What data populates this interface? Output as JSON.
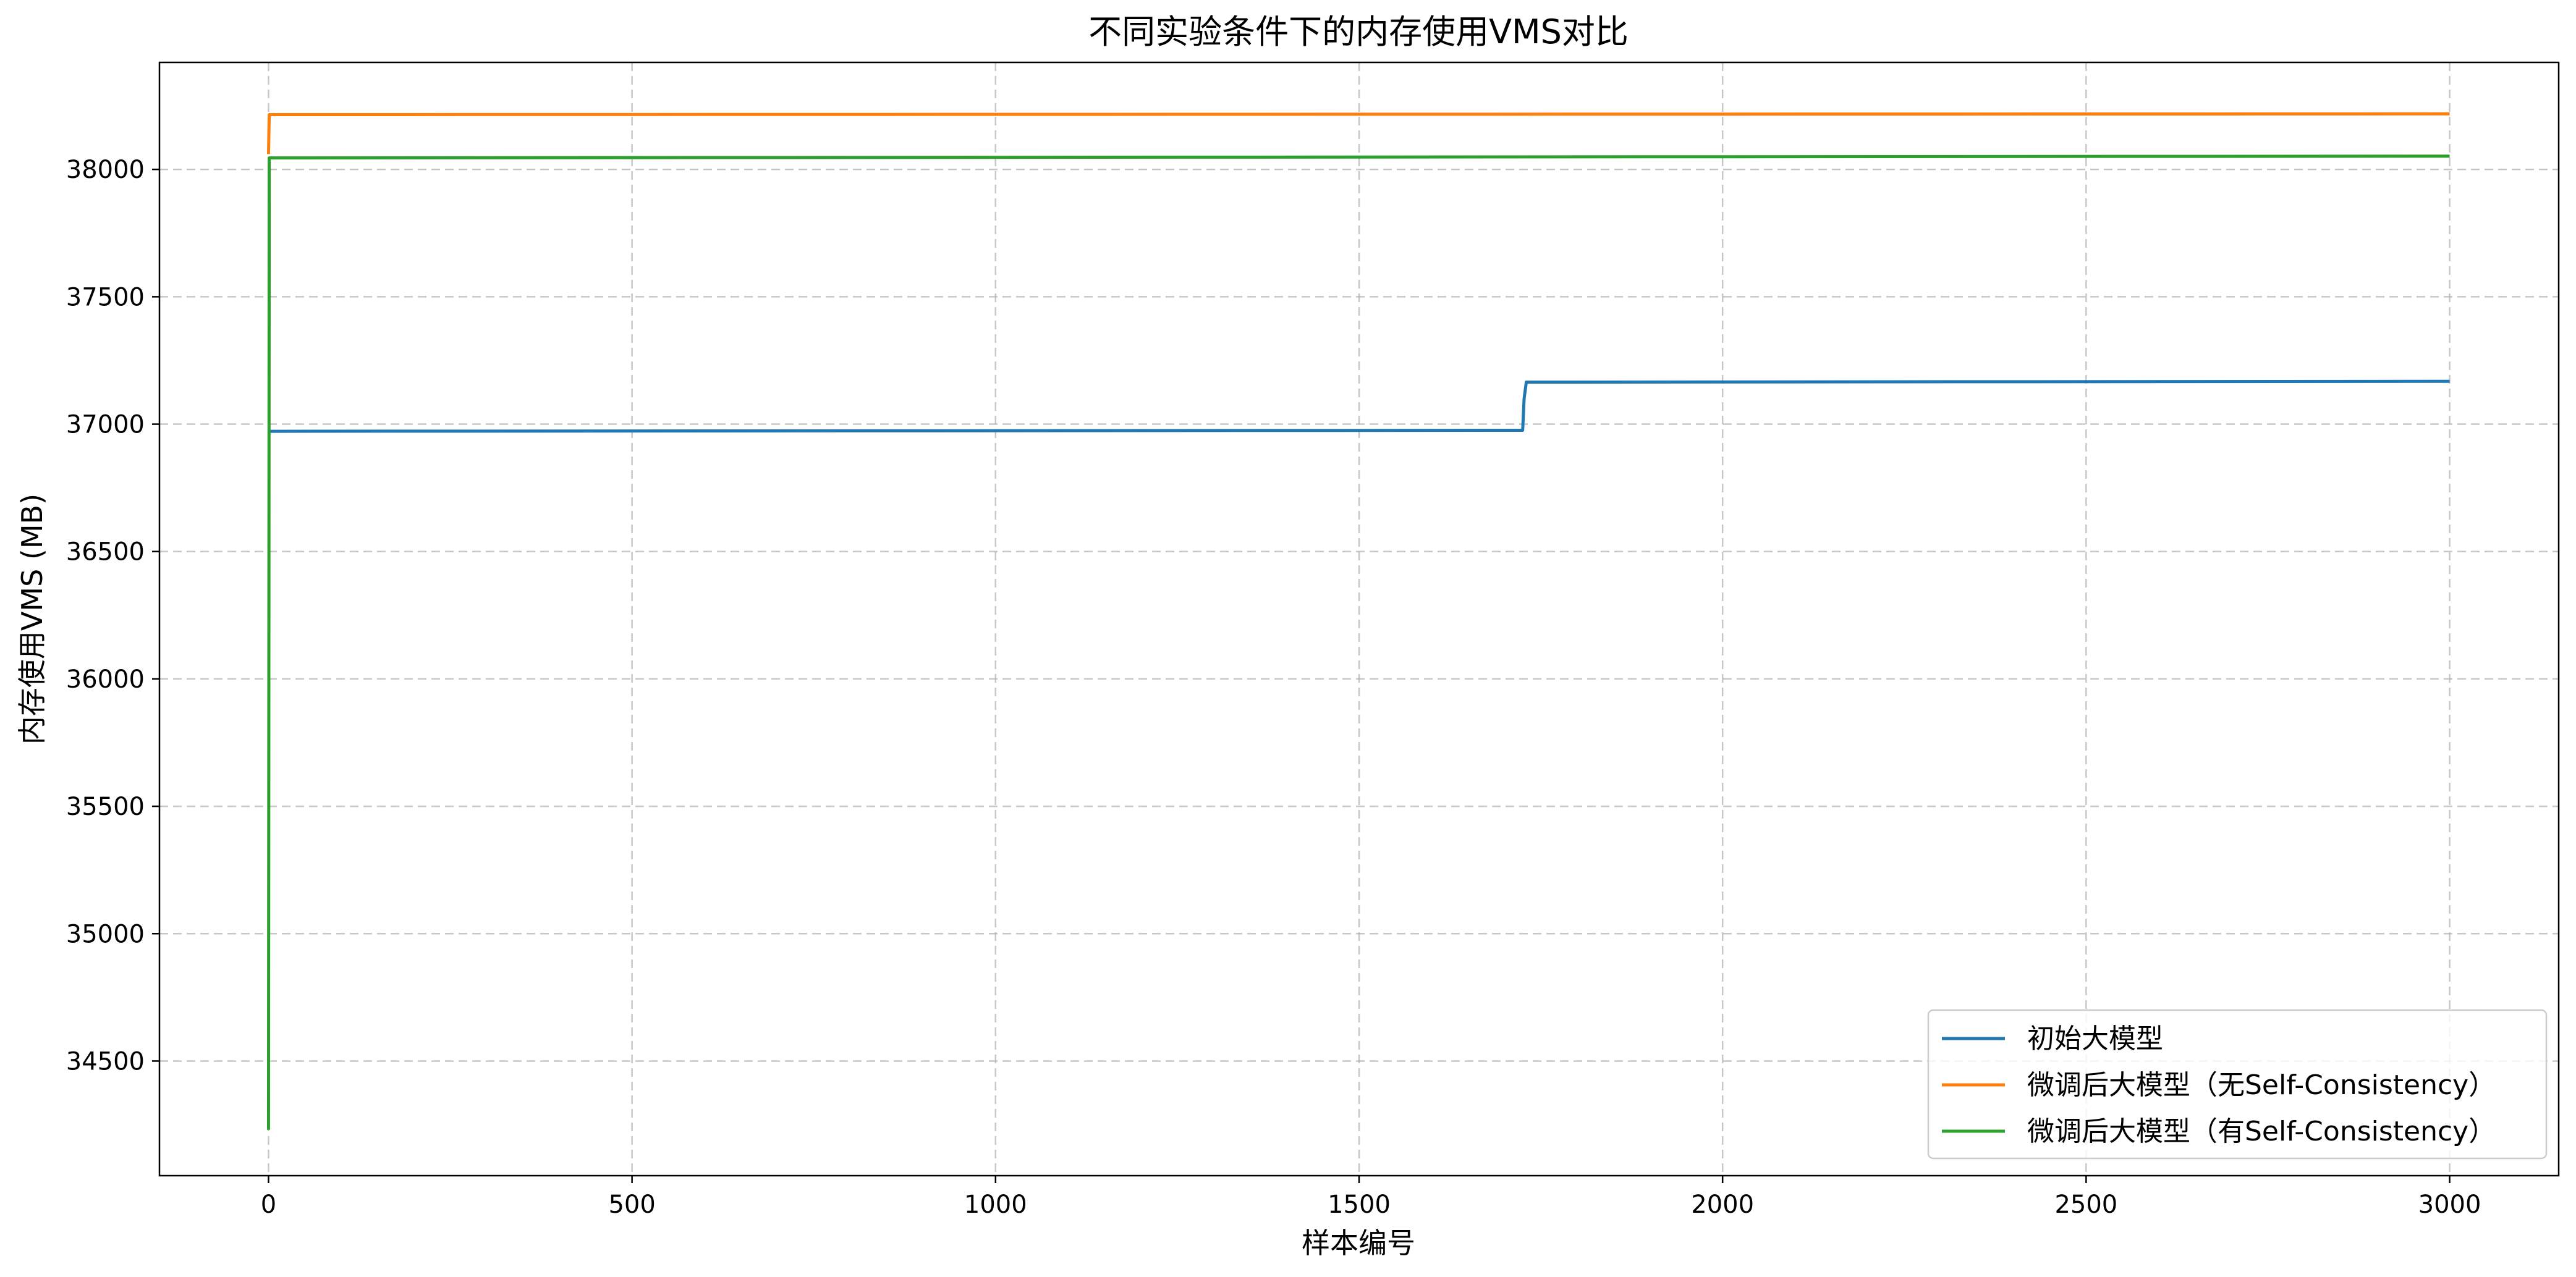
{
  "chart_data": {
    "type": "line",
    "title": "不同实验条件下的内存使用VMS对比",
    "xlabel": "样本编号",
    "ylabel": "内存使用VMS (MB)",
    "xlim": [
      -150,
      3150
    ],
    "ylim": [
      34050,
      38420
    ],
    "xticks": [
      0,
      500,
      1000,
      1500,
      2000,
      2500,
      3000
    ],
    "xtick_labels": [
      "0",
      "500",
      "1000",
      "1500",
      "2000",
      "2500",
      "3000"
    ],
    "yticks": [
      34500,
      35000,
      35500,
      36000,
      36500,
      37000,
      37500,
      38000
    ],
    "ytick_labels": [
      "34500",
      "35000",
      "35500",
      "36000",
      "36500",
      "37000",
      "37500",
      "38000"
    ],
    "grid": true,
    "legend_position": "lower-right",
    "series": [
      {
        "name": "初始大模型",
        "color": "#1f77b4",
        "x": [
          0,
          1,
          5,
          1725,
          1727,
          1730,
          3000
        ],
        "y": [
          36970,
          36972,
          36972,
          36976,
          37100,
          37165,
          37168
        ]
      },
      {
        "name": "微调后大模型（无Self-Consistency）",
        "color": "#ff7f0e",
        "x": [
          0,
          1,
          5,
          3000
        ],
        "y": [
          38060,
          38215,
          38215,
          38218
        ]
      },
      {
        "name": "微调后大模型（有Self-Consistency）",
        "color": "#2ca02c",
        "x": [
          0,
          1,
          5,
          3000
        ],
        "y": [
          34230,
          38045,
          38045,
          38052
        ]
      }
    ]
  }
}
